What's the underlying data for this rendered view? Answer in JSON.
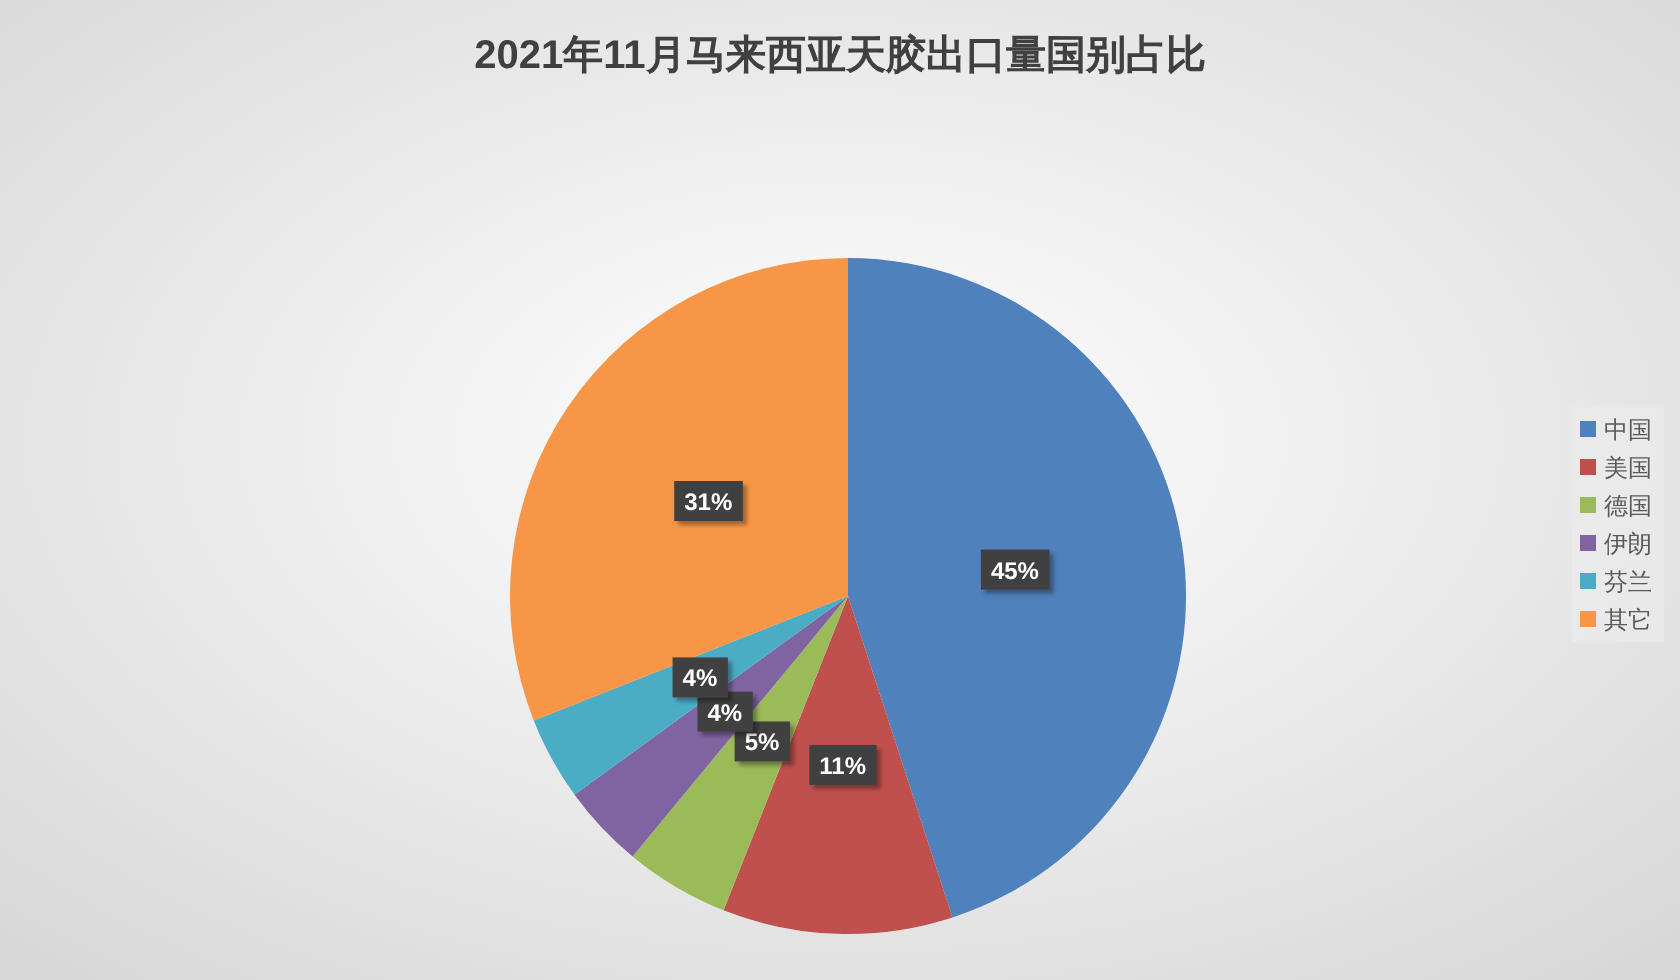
{
  "chart_data": {
    "type": "pie",
    "title": "2021年11月马来西亚天胶出口量国别占比",
    "categories": [
      "中国",
      "美国",
      "德国",
      "伊朗",
      "芬兰",
      "其它"
    ],
    "values": [
      45,
      11,
      5,
      4,
      4,
      31
    ],
    "colors": [
      "#4f81bd",
      "#c0504d",
      "#9bbb59",
      "#8064a2",
      "#4bacc6",
      "#f79646"
    ],
    "value_labels": [
      "45%",
      "11%",
      "5%",
      "4%",
      "4%",
      "31%"
    ],
    "legend": "right"
  }
}
